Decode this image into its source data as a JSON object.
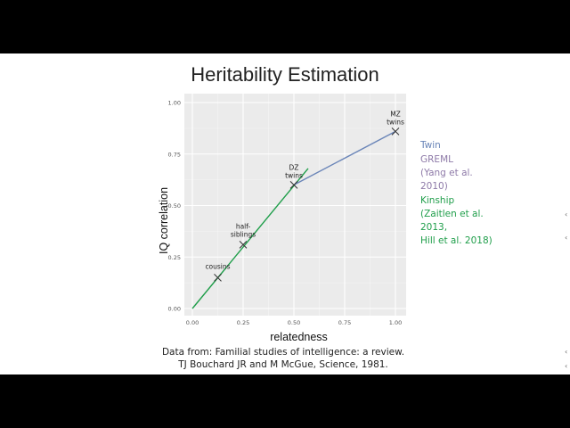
{
  "slide": {
    "title": "Heritability Estimation",
    "caption_line1": "Data from: Familial studies of intelligence: a review.",
    "caption_line2": "TJ Bouchard JR and M McGue, Science, 1981."
  },
  "legend": [
    {
      "text": "Twin",
      "color": "#6a85b8"
    },
    {
      "text": "GREML\n(Yang et al.\n2010)",
      "color": "#8e7aa8"
    },
    {
      "text": "Kinship\n(Zaitlen et al.\n2013,\nHill et al. 2018)",
      "color": "#1f9e4a"
    }
  ],
  "chart_data": {
    "type": "scatter",
    "xlabel": "relatedness",
    "ylabel": "IQ correlation",
    "xlim": [
      0,
      1
    ],
    "ylim": [
      0,
      1
    ],
    "x_ticks": [
      "0.00",
      "0.25",
      "0.50",
      "0.75",
      "1.00"
    ],
    "y_ticks": [
      "0.00",
      "0.25",
      "0.50",
      "0.75",
      "1.00"
    ],
    "grid": true,
    "panel_background": "#ebebeb",
    "points": [
      {
        "x": 0.125,
        "y": 0.15,
        "label": "cousins"
      },
      {
        "x": 0.25,
        "y": 0.31,
        "label": "half-\nsiblings"
      },
      {
        "x": 0.5,
        "y": 0.6,
        "label": "DZ\ntwins"
      },
      {
        "x": 1.0,
        "y": 0.86,
        "label": "MZ\ntwins"
      }
    ],
    "lines": [
      {
        "name": "Kinship",
        "color": "#1f9e4a",
        "x": [
          0,
          0.57
        ],
        "y": [
          0,
          0.68
        ]
      },
      {
        "name": "Twin",
        "color": "#6a85b8",
        "x": [
          0.5,
          1.0
        ],
        "y": [
          0.6,
          0.86
        ]
      }
    ],
    "edge_glyphs": [
      "‹",
      "‹",
      "‹",
      "‹"
    ]
  }
}
